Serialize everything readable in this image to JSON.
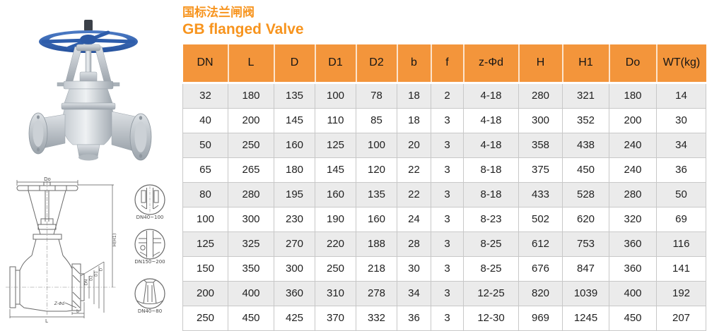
{
  "title": {
    "zh": "国标法兰闸阀",
    "en": "GB flanged Valve"
  },
  "colors": {
    "accent": "#F7941E",
    "header_bg": "#F3953B",
    "row_alt": "#EBEBEB",
    "grid": "#C8C8C8",
    "handwheel_blue": "#3363B1"
  },
  "table": {
    "headers": [
      "DN",
      "L",
      "D",
      "D1",
      "D2",
      "b",
      "f",
      "z-Φd",
      "H",
      "H1",
      "Do",
      "WT(kg)"
    ],
    "rows": [
      [
        "32",
        "180",
        "135",
        "100",
        "78",
        "18",
        "2",
        "4-18",
        "280",
        "321",
        "180",
        "14"
      ],
      [
        "40",
        "200",
        "145",
        "110",
        "85",
        "18",
        "3",
        "4-18",
        "300",
        "352",
        "200",
        "30"
      ],
      [
        "50",
        "250",
        "160",
        "125",
        "100",
        "20",
        "3",
        "4-18",
        "358",
        "438",
        "240",
        "34"
      ],
      [
        "65",
        "265",
        "180",
        "145",
        "120",
        "22",
        "3",
        "8-18",
        "375",
        "450",
        "240",
        "36"
      ],
      [
        "80",
        "280",
        "195",
        "160",
        "135",
        "22",
        "3",
        "8-18",
        "433",
        "528",
        "280",
        "50"
      ],
      [
        "100",
        "300",
        "230",
        "190",
        "160",
        "24",
        "3",
        "8-23",
        "502",
        "620",
        "320",
        "69"
      ],
      [
        "125",
        "325",
        "270",
        "220",
        "188",
        "28",
        "3",
        "8-25",
        "612",
        "753",
        "360",
        "116"
      ],
      [
        "150",
        "350",
        "300",
        "250",
        "218",
        "30",
        "3",
        "8-25",
        "676",
        "847",
        "360",
        "141"
      ],
      [
        "200",
        "400",
        "360",
        "310",
        "278",
        "34",
        "3",
        "12-25",
        "820",
        "1039",
        "400",
        "192"
      ],
      [
        "250",
        "450",
        "425",
        "370",
        "332",
        "36",
        "3",
        "12-30",
        "969",
        "1245",
        "450",
        "207"
      ]
    ]
  },
  "drawing": {
    "dim_top": "Do",
    "dim_right": "H(H1)",
    "dim_bottom": "L",
    "dim_b": "b",
    "dim_bolt": "Z-Φd",
    "dim_stack": [
      "DN",
      "D2",
      "D1",
      "D"
    ],
    "details": [
      "DN40~100",
      "DN150~200",
      "DN40~80"
    ]
  }
}
